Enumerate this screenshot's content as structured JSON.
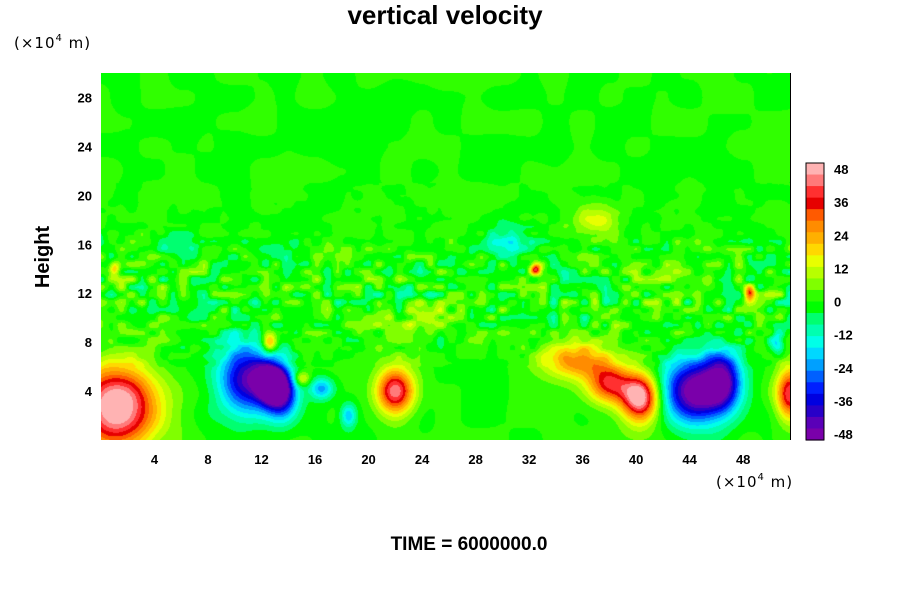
{
  "chart_data": {
    "type": "heatmap",
    "title": "vertical velocity",
    "ylabel": "Height",
    "xlabel": "",
    "x_unit": {
      "prefix": "(×10",
      "exp": "4",
      "suffix": " m)"
    },
    "y_unit": {
      "prefix": "(×10",
      "exp": "4",
      "suffix": " m)"
    },
    "xlim": [
      0,
      51.5
    ],
    "ylim": [
      0,
      30
    ],
    "x_ticks": [
      4,
      8,
      12,
      16,
      20,
      24,
      28,
      32,
      36,
      40,
      44,
      48
    ],
    "y_ticks": [
      4,
      8,
      12,
      16,
      20,
      24,
      28
    ],
    "colorbar": {
      "min": -48,
      "max": 48,
      "ticks": [
        48,
        36,
        24,
        12,
        0,
        -12,
        -24,
        -36,
        -48
      ]
    },
    "features": [
      {
        "x": 1.2,
        "y": 2.6,
        "value": 52,
        "sx": 3.0,
        "sy": 3.4
      },
      {
        "x": 11.0,
        "y": 5.0,
        "value": -42,
        "sx": 2.2,
        "sy": 2.8
      },
      {
        "x": 12.8,
        "y": 4.6,
        "value": -55,
        "sx": 1.1,
        "sy": 1.5
      },
      {
        "x": 13.6,
        "y": 3.4,
        "value": -30,
        "sx": 1.2,
        "sy": 2.0
      },
      {
        "x": 12.6,
        "y": 8.0,
        "value": 26,
        "sx": 0.5,
        "sy": 0.8
      },
      {
        "x": 15.0,
        "y": 5.0,
        "value": 18,
        "sx": 0.6,
        "sy": 0.6
      },
      {
        "x": 16.5,
        "y": 4.2,
        "value": -22,
        "sx": 0.9,
        "sy": 0.9
      },
      {
        "x": 18.5,
        "y": 2.0,
        "value": -20,
        "sx": 0.6,
        "sy": 1.0
      },
      {
        "x": 22.0,
        "y": 4.0,
        "value": 42,
        "sx": 1.4,
        "sy": 1.8
      },
      {
        "x": 35.5,
        "y": 6.5,
        "value": 26,
        "sx": 2.6,
        "sy": 1.5
      },
      {
        "x": 38.0,
        "y": 4.6,
        "value": 34,
        "sx": 1.6,
        "sy": 1.6
      },
      {
        "x": 40.3,
        "y": 3.4,
        "value": 50,
        "sx": 1.4,
        "sy": 2.0
      },
      {
        "x": 44.5,
        "y": 4.0,
        "value": -52,
        "sx": 2.4,
        "sy": 2.6
      },
      {
        "x": 46.5,
        "y": 5.0,
        "value": -32,
        "sx": 1.3,
        "sy": 2.5
      },
      {
        "x": 51.5,
        "y": 3.8,
        "value": 40,
        "sx": 1.0,
        "sy": 2.0
      },
      {
        "x": 32.5,
        "y": 14.0,
        "value": 36,
        "sx": 0.4,
        "sy": 0.5
      },
      {
        "x": 30.5,
        "y": 16.0,
        "value": -14,
        "sx": 2.0,
        "sy": 1.3
      },
      {
        "x": 48.5,
        "y": 12.0,
        "value": 30,
        "sx": 0.4,
        "sy": 0.6
      },
      {
        "x": 50.5,
        "y": 8.0,
        "value": -16,
        "sx": 0.5,
        "sy": 0.8
      },
      {
        "x": 1.0,
        "y": 14.0,
        "value": 22,
        "sx": 0.4,
        "sy": 0.6
      },
      {
        "x": 6.0,
        "y": 16.0,
        "value": -10,
        "sx": 1.6,
        "sy": 1.0
      },
      {
        "x": 37.0,
        "y": 18.0,
        "value": 12,
        "sx": 1.8,
        "sy": 1.2
      },
      {
        "x": 24.0,
        "y": 10.0,
        "value": 10,
        "sx": 2.0,
        "sy": 1.0
      }
    ],
    "footer": "TIME = 6000000.0"
  }
}
